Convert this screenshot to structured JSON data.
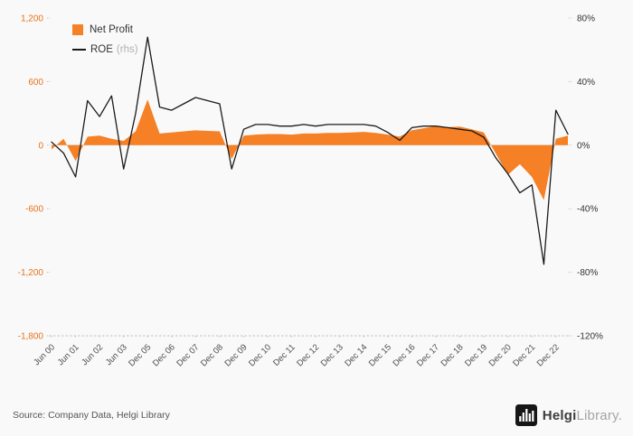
{
  "chart": {
    "legend": [
      {
        "label": "Net Profit"
      },
      {
        "label": "ROE",
        "suffix": "(rhs)"
      }
    ]
  },
  "chart_data": {
    "type": "combo-area-line",
    "tick_labels": [
      "Jun 00",
      "Jun 01",
      "Jun 02",
      "Jun 03",
      "Dec 05",
      "Dec 06",
      "Dec 07",
      "Dec 08",
      "Dec 09",
      "Dec 10",
      "Dec 11",
      "Dec 12",
      "Dec 13",
      "Dec 14",
      "Dec 15",
      "Dec 16",
      "Dec 17",
      "Dec 18",
      "Dec 19",
      "Dec 20",
      "Dec 21",
      "Dec 22"
    ],
    "points_per_tick": 2,
    "left_axis": {
      "min": -1800,
      "max": 1200,
      "tick_values": [
        1200,
        600,
        0,
        -600,
        -1200,
        -1800
      ],
      "tick_labels": [
        "1,200",
        "600",
        "0",
        "-600",
        "-1,200",
        "-1,800"
      ],
      "color": "#e8721c"
    },
    "right_axis": {
      "min": -120,
      "max": 80,
      "tick_values": [
        80,
        40,
        0,
        -40,
        -80,
        -120
      ],
      "tick_labels": [
        "80%",
        "40%",
        "0%",
        "-40%",
        "-80%",
        "-120%"
      ],
      "color": "#333333"
    },
    "series": [
      {
        "name": "Net Profit",
        "kind": "area",
        "axis": "left",
        "color": "#f58025",
        "values": [
          -40,
          60,
          -150,
          80,
          90,
          60,
          40,
          130,
          430,
          110,
          120,
          130,
          140,
          135,
          130,
          -130,
          90,
          100,
          105,
          105,
          100,
          110,
          110,
          115,
          115,
          120,
          125,
          115,
          100,
          80,
          140,
          160,
          180,
          170,
          175,
          150,
          120,
          -80,
          -280,
          -180,
          -300,
          -520,
          60,
          90
        ]
      },
      {
        "name": "ROE",
        "kind": "line",
        "axis": "right",
        "color": "#1a1a1a",
        "values": [
          2,
          -5,
          -20,
          28,
          18,
          31,
          -15,
          20,
          68,
          24,
          22,
          26,
          30,
          28,
          26,
          -15,
          10,
          13,
          13,
          12,
          12,
          13,
          12,
          13,
          13,
          13,
          13,
          12,
          8,
          3,
          11,
          12,
          12,
          11,
          10,
          9,
          5,
          -8,
          -18,
          -30,
          -25,
          -75,
          22,
          7
        ]
      }
    ],
    "grid": "dotted-bottom-only",
    "legend_position": "top-left"
  },
  "footer": {
    "source": "Source: Company Data, Helgi Library",
    "logo_bold": "Helgi",
    "logo_light": "Library."
  }
}
